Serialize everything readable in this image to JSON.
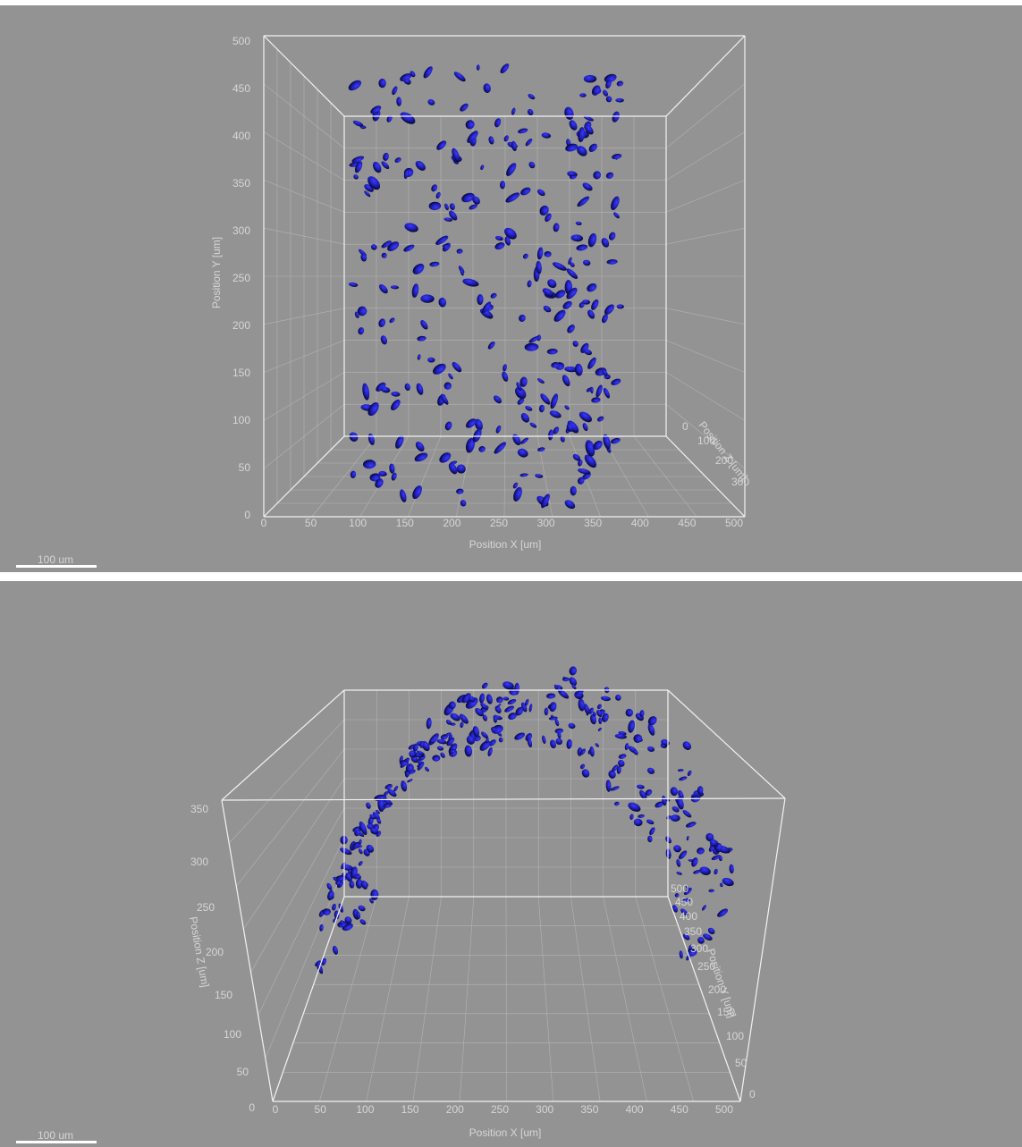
{
  "panels": [
    {
      "x_ticks": [
        0,
        50,
        100,
        150,
        200,
        250,
        300,
        350,
        400,
        450,
        500
      ],
      "y_ticks": [
        0,
        50,
        100,
        150,
        200,
        250,
        300,
        350,
        400,
        450,
        500
      ],
      "z_ticks": [
        0,
        100,
        200,
        300
      ],
      "x_label": "Position X [um]",
      "y_label": "Position Y [um]",
      "z_label": "Position Z [um]",
      "scale_bar": "100 um"
    },
    {
      "x_ticks": [
        0,
        50,
        100,
        150,
        200,
        250,
        300,
        350,
        400,
        450,
        500
      ],
      "z_ticks": [
        0,
        50,
        100,
        150,
        200,
        250,
        300,
        350
      ],
      "y_ticks": [
        0,
        50,
        100,
        150,
        200,
        250,
        300,
        350,
        400,
        450,
        500
      ],
      "x_label": "Position X [um]",
      "z_label": "Position Z [um]",
      "y_label": "Position Y [um]",
      "scale_bar": "100 um"
    }
  ]
}
